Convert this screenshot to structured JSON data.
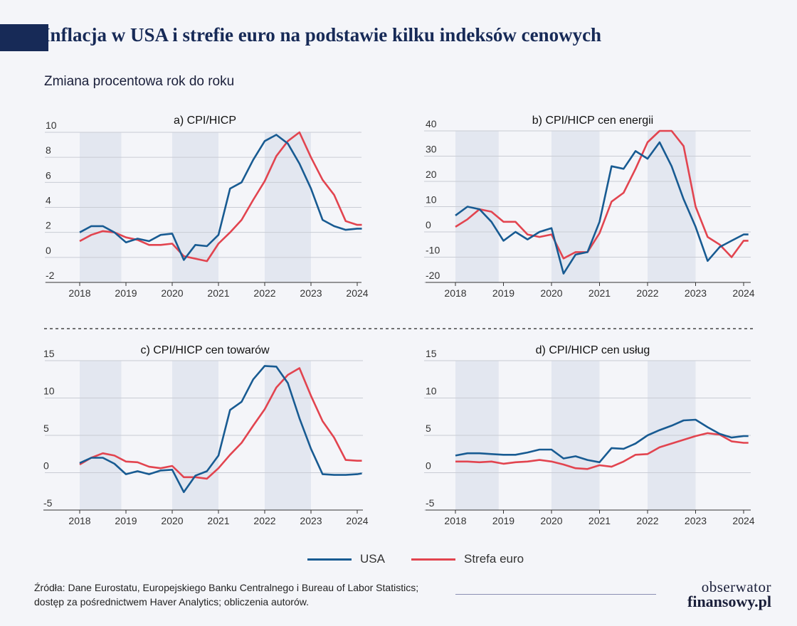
{
  "header": {
    "title": "Inflacja w USA i strefie euro na podstawie kilku indeksów cenowych",
    "subtitle": "Zmiana procentowa rok do roku"
  },
  "colors": {
    "usa": "#185b92",
    "euro": "#e2444f",
    "shade": "#e3e7f0",
    "grid": "#c9ccd4",
    "title": "#172a57"
  },
  "legend": {
    "usa": "USA",
    "euro": "Strefa euro"
  },
  "footer": {
    "source_line1": "Źródła: Dane Eurostatu, Europejskiego Banku Centralnego i Bureau of Labor Statistics;",
    "source_line2": "dostęp za pośrednictwem Haver Analytics; obliczenia autorów.",
    "logo_line1": "obserwator",
    "logo_line2": "finansowy.pl"
  },
  "chart_data": [
    {
      "type": "line",
      "title": "a) CPI/HICP",
      "xlim": [
        2018,
        2024.1
      ],
      "x_ticks": [
        2018,
        2019,
        2020,
        2021,
        2022,
        2023,
        2024
      ],
      "ylim": [
        -2,
        10
      ],
      "y_ticks": [
        -2,
        0,
        2,
        4,
        6,
        8,
        10
      ],
      "shaded": [
        [
          2018,
          2018.9
        ],
        [
          2020,
          2021
        ],
        [
          2022,
          2023
        ]
      ],
      "x": [
        2018,
        2018.25,
        2018.5,
        2018.75,
        2019,
        2019.25,
        2019.5,
        2019.75,
        2020,
        2020.25,
        2020.5,
        2020.75,
        2021,
        2021.25,
        2021.5,
        2021.75,
        2022,
        2022.25,
        2022.5,
        2022.75,
        2023,
        2023.25,
        2023.5,
        2023.75,
        2024,
        2024.1
      ],
      "series": [
        {
          "name": "USA",
          "values": [
            2.0,
            2.5,
            2.5,
            2.0,
            1.2,
            1.5,
            1.3,
            1.8,
            1.9,
            -0.2,
            1.0,
            0.9,
            1.8,
            5.5,
            6.0,
            7.8,
            9.3,
            9.8,
            9.1,
            7.5,
            5.5,
            3.0,
            2.5,
            2.2,
            2.3,
            2.3
          ]
        },
        {
          "name": "Strefa euro",
          "values": [
            1.3,
            1.8,
            2.1,
            2.0,
            1.6,
            1.4,
            1.0,
            1.0,
            1.1,
            0.1,
            -0.1,
            -0.3,
            1.1,
            2.0,
            3.0,
            4.6,
            6.1,
            8.1,
            9.3,
            10.0,
            8.0,
            6.2,
            5.0,
            2.9,
            2.6,
            2.6
          ]
        }
      ]
    },
    {
      "type": "line",
      "title": "b) CPI/HICP cen energii",
      "xlim": [
        2018,
        2024.1
      ],
      "x_ticks": [
        2018,
        2019,
        2020,
        2021,
        2022,
        2023,
        2024
      ],
      "ylim": [
        -20,
        40
      ],
      "y_ticks": [
        -20,
        -10,
        0,
        10,
        20,
        30,
        40
      ],
      "shaded": [
        [
          2018,
          2018.9
        ],
        [
          2020,
          2021
        ],
        [
          2022,
          2023
        ]
      ],
      "x": [
        2018,
        2018.25,
        2018.5,
        2018.75,
        2019,
        2019.25,
        2019.5,
        2019.75,
        2020,
        2020.25,
        2020.5,
        2020.75,
        2021,
        2021.25,
        2021.5,
        2021.75,
        2022,
        2022.25,
        2022.5,
        2022.75,
        2023,
        2023.25,
        2023.5,
        2023.75,
        2024,
        2024.1
      ],
      "series": [
        {
          "name": "USA",
          "values": [
            6.5,
            10.0,
            9.0,
            4.0,
            -3.5,
            0.0,
            -3.0,
            0.0,
            1.5,
            -16.5,
            -9.0,
            -8.0,
            4.0,
            26.0,
            25.0,
            32.0,
            29.0,
            35.5,
            26.0,
            13.0,
            2.0,
            -11.5,
            -6.0,
            -3.5,
            -1.0,
            -1.0
          ]
        },
        {
          "name": "Strefa euro",
          "values": [
            2.0,
            5.0,
            9.0,
            8.0,
            4.0,
            4.0,
            -1.0,
            -2.0,
            -1.0,
            -10.5,
            -8.0,
            -8.0,
            -0.5,
            12.0,
            15.5,
            25.0,
            35.5,
            40.0,
            40.0,
            34.0,
            10.0,
            -2.0,
            -5.0,
            -10.0,
            -3.5,
            -3.5
          ]
        }
      ]
    },
    {
      "type": "line",
      "title": "c) CPI/HICP cen towarów",
      "xlim": [
        2018,
        2024.1
      ],
      "x_ticks": [
        2018,
        2019,
        2020,
        2021,
        2022,
        2023,
        2024
      ],
      "ylim": [
        -5,
        15
      ],
      "y_ticks": [
        -5,
        0,
        5,
        10,
        15
      ],
      "shaded": [
        [
          2018,
          2018.9
        ],
        [
          2020,
          2021
        ],
        [
          2022,
          2023
        ]
      ],
      "x": [
        2018,
        2018.25,
        2018.5,
        2018.75,
        2019,
        2019.25,
        2019.5,
        2019.75,
        2020,
        2020.25,
        2020.5,
        2020.75,
        2021,
        2021.25,
        2021.5,
        2021.75,
        2022,
        2022.25,
        2022.5,
        2022.75,
        2023,
        2023.25,
        2023.5,
        2023.75,
        2024,
        2024.1
      ],
      "series": [
        {
          "name": "USA",
          "values": [
            1.3,
            2.0,
            2.0,
            1.2,
            -0.2,
            0.2,
            -0.2,
            0.3,
            0.4,
            -2.6,
            -0.4,
            0.2,
            2.3,
            8.4,
            9.5,
            12.5,
            14.3,
            14.2,
            12.0,
            7.3,
            3.2,
            -0.2,
            -0.3,
            -0.3,
            -0.2,
            -0.1
          ]
        },
        {
          "name": "Strefa euro",
          "values": [
            1.1,
            2.0,
            2.6,
            2.3,
            1.5,
            1.4,
            0.8,
            0.6,
            0.9,
            -0.6,
            -0.6,
            -0.8,
            0.6,
            2.4,
            4.0,
            6.3,
            8.5,
            11.4,
            13.1,
            14.0,
            10.3,
            6.9,
            4.7,
            1.7,
            1.6,
            1.6
          ]
        }
      ]
    },
    {
      "type": "line",
      "title": "d) CPI/HICP cen usług",
      "xlim": [
        2018,
        2024.1
      ],
      "x_ticks": [
        2018,
        2019,
        2020,
        2021,
        2022,
        2023,
        2024
      ],
      "ylim": [
        -5,
        15
      ],
      "y_ticks": [
        -5,
        0,
        5,
        10,
        15
      ],
      "shaded": [
        [
          2018,
          2018.9
        ],
        [
          2020,
          2021
        ],
        [
          2022,
          2023
        ]
      ],
      "x": [
        2018,
        2018.25,
        2018.5,
        2018.75,
        2019,
        2019.25,
        2019.5,
        2019.75,
        2020,
        2020.25,
        2020.5,
        2020.75,
        2021,
        2021.25,
        2021.5,
        2021.75,
        2022,
        2022.25,
        2022.5,
        2022.75,
        2023,
        2023.25,
        2023.5,
        2023.75,
        2024,
        2024.1
      ],
      "series": [
        {
          "name": "USA",
          "values": [
            2.3,
            2.6,
            2.6,
            2.5,
            2.4,
            2.4,
            2.7,
            3.1,
            3.1,
            1.9,
            2.2,
            1.7,
            1.4,
            3.3,
            3.2,
            3.9,
            5.0,
            5.7,
            6.3,
            7.0,
            7.1,
            6.1,
            5.2,
            4.7,
            4.9,
            4.9
          ]
        },
        {
          "name": "Strefa euro",
          "values": [
            1.5,
            1.5,
            1.4,
            1.5,
            1.2,
            1.4,
            1.5,
            1.7,
            1.5,
            1.1,
            0.6,
            0.5,
            1.0,
            0.8,
            1.5,
            2.4,
            2.5,
            3.4,
            3.9,
            4.4,
            4.9,
            5.3,
            5.1,
            4.2,
            4.0,
            4.0
          ]
        }
      ]
    }
  ]
}
